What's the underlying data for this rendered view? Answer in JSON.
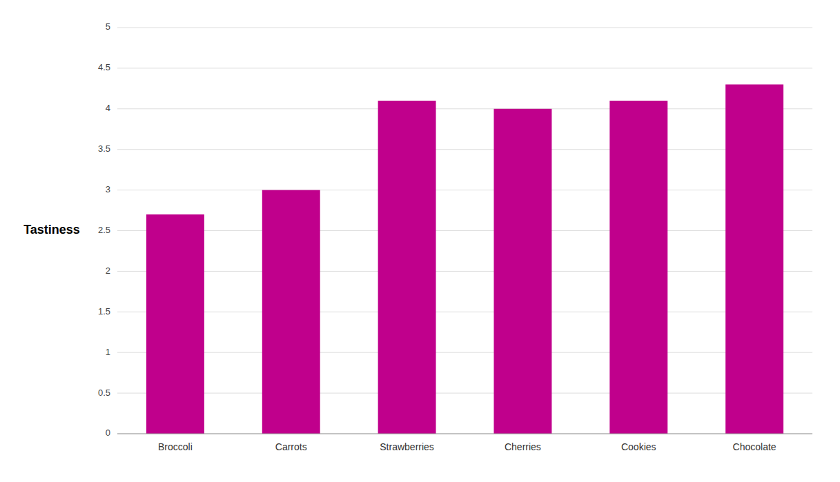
{
  "chart_data": {
    "type": "bar",
    "categories": [
      "Broccoli",
      "Carrots",
      "Strawberries",
      "Cherries",
      "Cookies",
      "Chocolate"
    ],
    "values": [
      2.7,
      3.0,
      4.1,
      4.0,
      4.1,
      4.3
    ],
    "color": "#C0008C",
    "ylabel": "Tastiness",
    "ylim": [
      0,
      5
    ],
    "yticks": [
      0,
      0.5,
      1,
      1.5,
      2,
      2.5,
      3,
      3.5,
      4,
      4.5,
      5
    ],
    "grid": true
  }
}
